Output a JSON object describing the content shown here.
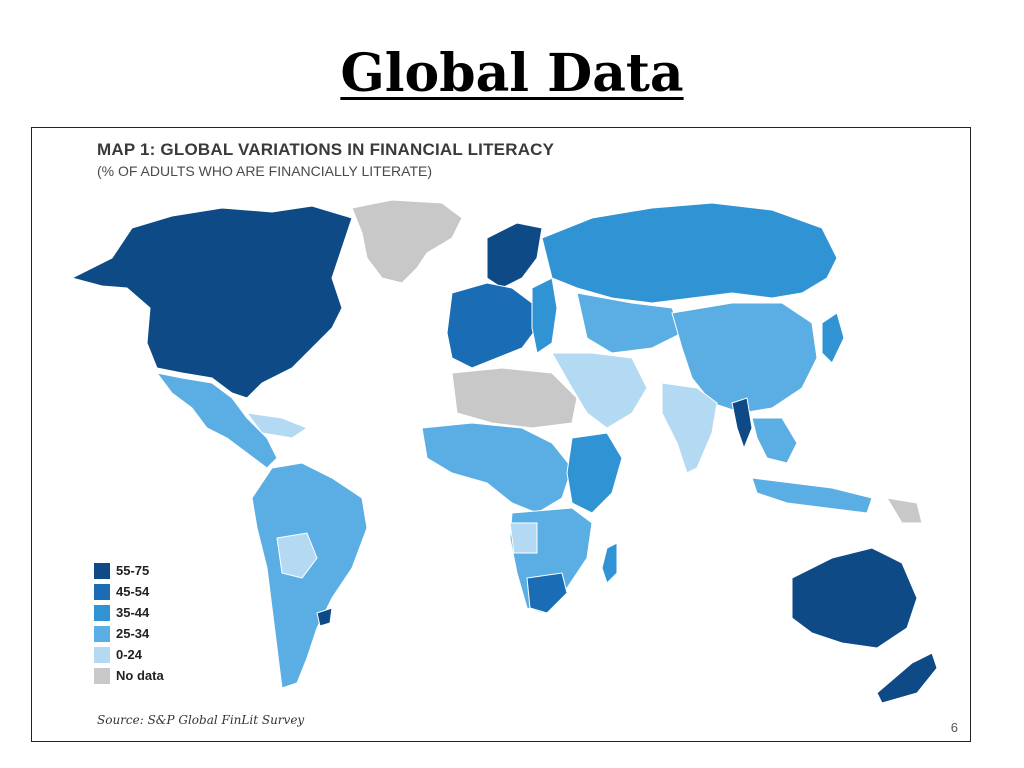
{
  "slide": {
    "title": "Global Data",
    "page_number": "6"
  },
  "map": {
    "title": "MAP 1: GLOBAL VARIATIONS IN FINANCIAL LITERACY",
    "subtitle": "(% OF ADULTS WHO ARE FINANCIALLY LITERATE)",
    "source": "Source: S&P Global FinLit Survey",
    "legend": [
      {
        "label": "55-75",
        "color": "#0d4a86"
      },
      {
        "label": "45-54",
        "color": "#1a6db5"
      },
      {
        "label": "35-44",
        "color": "#2f93d4"
      },
      {
        "label": "25-34",
        "color": "#5aaee3"
      },
      {
        "label": "0-24",
        "color": "#b3d9f3"
      },
      {
        "label": "No data",
        "color": "#c8c8c8"
      }
    ]
  }
}
